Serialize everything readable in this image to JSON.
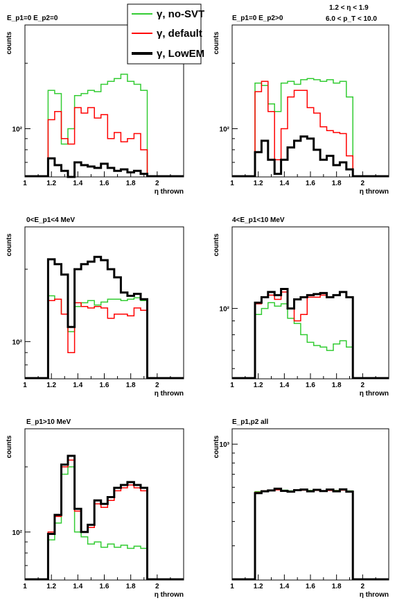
{
  "header": {
    "eta_range": "1.2 < η < 1.9",
    "pt_range": "6.0 < p_T < 10.0"
  },
  "legend": {
    "placement": "top-center",
    "entries": [
      {
        "label": "γ, no-SVT",
        "color": "#33cc33",
        "series": "nosvt"
      },
      {
        "label": "γ, default",
        "color": "#ff0000",
        "series": "default"
      },
      {
        "label": "γ, LowEM",
        "color": "#000000",
        "series": "lowem"
      }
    ]
  },
  "chart_data": [
    {
      "type": "line",
      "title": "E_p1=0 E_p2=0",
      "xlabel": "η thrown",
      "ylabel": "counts",
      "xlim": [
        1,
        2.2
      ],
      "ylim": [
        60,
        300
      ],
      "yscale": "log",
      "xticks": [
        "1",
        "1.2",
        "1.4",
        "1.6",
        "1.8",
        "2"
      ],
      "yticks": [
        {
          "value": 100,
          "label": "10²"
        }
      ],
      "x": [
        1.2,
        1.25,
        1.3,
        1.35,
        1.4,
        1.45,
        1.5,
        1.55,
        1.6,
        1.65,
        1.7,
        1.75,
        1.8,
        1.85,
        1.9
      ],
      "series": [
        {
          "key": "nosvt",
          "values": [
            150,
            145,
            85,
            100,
            142,
            145,
            150,
            148,
            160,
            165,
            170,
            178,
            165,
            160,
            150
          ]
        },
        {
          "key": "default",
          "values": [
            110,
            120,
            90,
            85,
            125,
            118,
            125,
            112,
            116,
            90,
            96,
            87,
            90,
            95,
            80
          ]
        },
        {
          "key": "lowem",
          "values": [
            73,
            68,
            64,
            60,
            70,
            68,
            67,
            66,
            69,
            66,
            64,
            65,
            63,
            64,
            62
          ]
        }
      ]
    },
    {
      "type": "line",
      "title": "E_p1=0 E_p2>0",
      "xlabel": "η thrown",
      "ylabel": "counts",
      "xlim": [
        1,
        2.2
      ],
      "ylim": [
        60,
        300
      ],
      "yscale": "log",
      "xticks": [
        "1",
        "1.2",
        "1.4",
        "1.6",
        "1.8",
        "2"
      ],
      "yticks": [
        {
          "value": 100,
          "label": "10²"
        }
      ],
      "x": [
        1.2,
        1.25,
        1.3,
        1.35,
        1.4,
        1.45,
        1.5,
        1.55,
        1.6,
        1.65,
        1.7,
        1.75,
        1.8,
        1.85,
        1.9
      ],
      "series": [
        {
          "key": "nosvt",
          "values": [
            162,
            158,
            130,
            120,
            162,
            165,
            160,
            168,
            170,
            168,
            165,
            168,
            162,
            165,
            140
          ]
        },
        {
          "key": "default",
          "values": [
            148,
            165,
            120,
            72,
            100,
            140,
            150,
            150,
            125,
            118,
            102,
            98,
            96,
            95,
            75
          ]
        },
        {
          "key": "lowem",
          "values": [
            78,
            88,
            72,
            62,
            72,
            82,
            88,
            92,
            90,
            80,
            72,
            75,
            68,
            70,
            65
          ]
        }
      ]
    },
    {
      "type": "line",
      "title": "0<E_p1<4 MeV",
      "xlabel": "η thrown",
      "ylabel": "counts",
      "xlim": [
        1,
        2.2
      ],
      "ylim": [
        70,
        300
      ],
      "yscale": "log",
      "xticks": [
        "1",
        "1.2",
        "1.4",
        "1.6",
        "1.8",
        "2"
      ],
      "yticks": [
        {
          "value": 100,
          "label": "10²"
        }
      ],
      "x": [
        1.2,
        1.25,
        1.3,
        1.35,
        1.4,
        1.45,
        1.5,
        1.55,
        1.6,
        1.65,
        1.7,
        1.75,
        1.8,
        1.85,
        1.9
      ],
      "series": [
        {
          "key": "nosvt",
          "values": [
            155,
            150,
            130,
            110,
            140,
            145,
            148,
            142,
            146,
            150,
            150,
            148,
            150,
            152,
            148
          ]
        },
        {
          "key": "default",
          "values": [
            148,
            150,
            130,
            90,
            145,
            140,
            138,
            140,
            138,
            125,
            130,
            130,
            128,
            138,
            135
          ]
        },
        {
          "key": "lowem",
          "values": [
            220,
            210,
            190,
            115,
            200,
            210,
            215,
            225,
            218,
            200,
            185,
            160,
            155,
            158,
            150
          ]
        }
      ]
    },
    {
      "type": "line",
      "title": "4<E_p1<10 MeV",
      "xlabel": "η thrown",
      "ylabel": "counts",
      "xlim": [
        1,
        2.2
      ],
      "ylim": [
        55,
        200
      ],
      "yscale": "log",
      "xticks": [
        "1",
        "1.2",
        "1.4",
        "1.6",
        "1.8",
        "2"
      ],
      "yticks": [
        {
          "value": 100,
          "label": "10²"
        }
      ],
      "x": [
        1.2,
        1.25,
        1.3,
        1.35,
        1.4,
        1.45,
        1.5,
        1.55,
        1.6,
        1.65,
        1.7,
        1.75,
        1.8,
        1.85,
        1.9
      ],
      "series": [
        {
          "key": "nosvt",
          "values": [
            95,
            100,
            105,
            102,
            104,
            92,
            88,
            80,
            75,
            73,
            72,
            70,
            74,
            76,
            72
          ]
        },
        {
          "key": "default",
          "values": [
            104,
            110,
            112,
            108,
            115,
            100,
            90,
            95,
            110,
            110,
            112,
            110,
            112,
            115,
            110
          ]
        },
        {
          "key": "lowem",
          "values": [
            105,
            110,
            115,
            112,
            118,
            100,
            108,
            110,
            112,
            113,
            114,
            110,
            112,
            115,
            110
          ]
        }
      ]
    },
    {
      "type": "line",
      "title": "E_p1>10 MeV",
      "xlabel": "η thrown",
      "ylabel": "counts",
      "xlim": [
        1,
        2.2
      ],
      "ylim": [
        60,
        300
      ],
      "yscale": "log",
      "xticks": [
        "1",
        "1.2",
        "1.4",
        "1.6",
        "1.8",
        "2"
      ],
      "yticks": [
        {
          "value": 100,
          "label": "10²"
        }
      ],
      "x": [
        1.2,
        1.25,
        1.3,
        1.35,
        1.4,
        1.45,
        1.5,
        1.55,
        1.6,
        1.65,
        1.7,
        1.75,
        1.8,
        1.85,
        1.9
      ],
      "series": [
        {
          "key": "nosvt",
          "values": [
            92,
            110,
            185,
            200,
            100,
            95,
            88,
            90,
            85,
            88,
            85,
            87,
            84,
            86,
            84
          ]
        },
        {
          "key": "default",
          "values": [
            100,
            118,
            200,
            215,
            125,
            100,
            105,
            135,
            130,
            140,
            155,
            160,
            165,
            160,
            155
          ]
        },
        {
          "key": "lowem",
          "values": [
            98,
            120,
            205,
            225,
            128,
            100,
            108,
            140,
            135,
            145,
            160,
            165,
            170,
            165,
            160
          ]
        }
      ]
    },
    {
      "type": "line",
      "title": "E_p1,p2 all",
      "xlabel": "η thrown",
      "ylabel": "counts",
      "xlim": [
        1,
        2.2
      ],
      "ylim": [
        200,
        1200
      ],
      "yscale": "log",
      "xticks": [
        "1",
        "1.2",
        "1.4",
        "1.6",
        "1.8",
        "2"
      ],
      "yticks": [
        {
          "value": 1000,
          "label": "10³"
        }
      ],
      "x": [
        1.2,
        1.25,
        1.3,
        1.35,
        1.4,
        1.45,
        1.5,
        1.55,
        1.6,
        1.65,
        1.7,
        1.75,
        1.8,
        1.85,
        1.9
      ],
      "series": [
        {
          "key": "nosvt",
          "values": [
            570,
            575,
            580,
            585,
            580,
            575,
            580,
            582,
            578,
            580,
            576,
            580,
            578,
            582,
            575
          ]
        },
        {
          "key": "default",
          "values": [
            565,
            575,
            580,
            582,
            578,
            572,
            578,
            580,
            575,
            578,
            574,
            578,
            576,
            580,
            572
          ]
        },
        {
          "key": "lowem",
          "values": [
            560,
            572,
            578,
            590,
            575,
            570,
            580,
            584,
            572,
            582,
            574,
            584,
            572,
            585,
            570
          ]
        }
      ]
    }
  ]
}
